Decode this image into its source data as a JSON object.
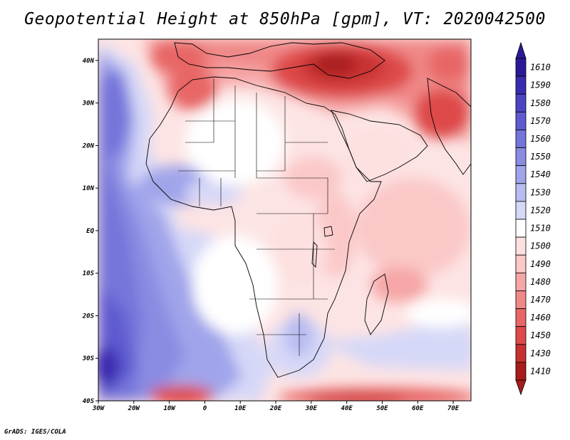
{
  "title": "Geopotential Height at 850hPa [gpm], VT: 2020042500",
  "credit": "GrADS: IGES/COLA",
  "map": {
    "variable": "Geopotential Height",
    "level": "850hPa",
    "units": "gpm",
    "valid_time": "2020042500",
    "lon_range": [
      -30,
      75
    ],
    "lat_range": [
      -40,
      45
    ],
    "lat_ticks": [
      {
        "value": 40,
        "label": "40N"
      },
      {
        "value": 30,
        "label": "30N"
      },
      {
        "value": 20,
        "label": "20N"
      },
      {
        "value": 10,
        "label": "10N"
      },
      {
        "value": 0,
        "label": "EQ"
      },
      {
        "value": -10,
        "label": "10S"
      },
      {
        "value": -20,
        "label": "20S"
      },
      {
        "value": -30,
        "label": "30S"
      },
      {
        "value": -40,
        "label": "40S"
      }
    ],
    "lon_ticks": [
      {
        "value": -30,
        "label": "30W"
      },
      {
        "value": -20,
        "label": "20W"
      },
      {
        "value": -10,
        "label": "10W"
      },
      {
        "value": 0,
        "label": "0"
      },
      {
        "value": 10,
        "label": "10E"
      },
      {
        "value": 20,
        "label": "20E"
      },
      {
        "value": 30,
        "label": "30E"
      },
      {
        "value": 40,
        "label": "40E"
      },
      {
        "value": 50,
        "label": "50E"
      },
      {
        "value": 60,
        "label": "60E"
      },
      {
        "value": 70,
        "label": "70E"
      }
    ]
  },
  "colorbar": {
    "levels": [
      {
        "label": "1610",
        "color": "#2a1a9a"
      },
      {
        "label": "1590",
        "color": "#3a2cb0"
      },
      {
        "label": "1580",
        "color": "#4d44c4"
      },
      {
        "label": "1570",
        "color": "#5f5ad0"
      },
      {
        "label": "1560",
        "color": "#7474da"
      },
      {
        "label": "1550",
        "color": "#8a8ce2"
      },
      {
        "label": "1540",
        "color": "#a0a4ea"
      },
      {
        "label": "1530",
        "color": "#b8bcf0"
      },
      {
        "label": "1520",
        "color": "#d6d8f8"
      },
      {
        "label": "1510",
        "color": "#ffffff"
      },
      {
        "label": "1500",
        "color": "#fde0e0"
      },
      {
        "label": "1490",
        "color": "#fbc8c8"
      },
      {
        "label": "1480",
        "color": "#f6a6a6"
      },
      {
        "label": "1470",
        "color": "#f08888"
      },
      {
        "label": "1460",
        "color": "#e86666"
      },
      {
        "label": "1450",
        "color": "#de4a4a"
      },
      {
        "label": "1430",
        "color": "#c83030"
      },
      {
        "label": "1410",
        "color": "#a81c1c"
      }
    ]
  }
}
